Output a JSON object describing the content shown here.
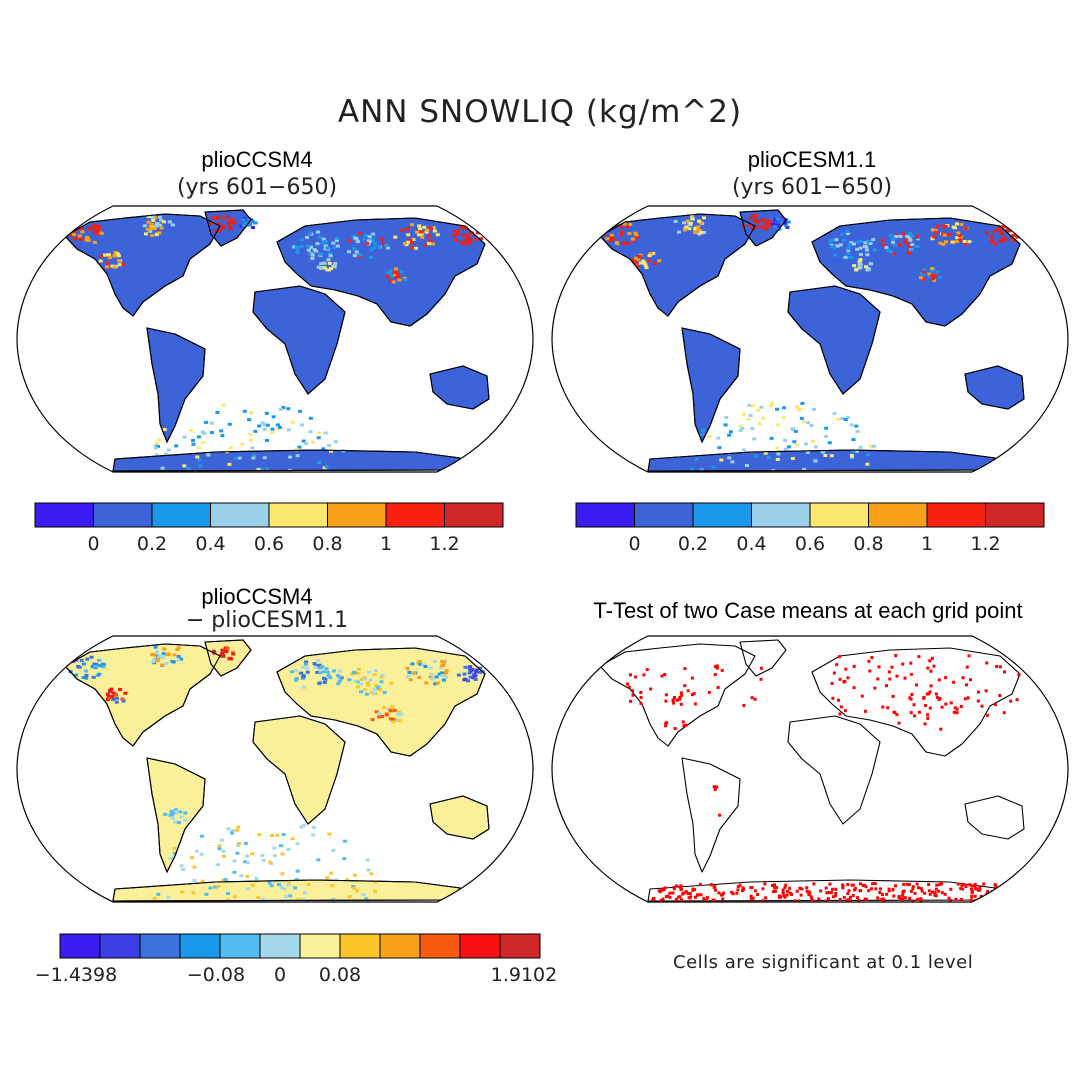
{
  "figure": {
    "title": "ANN SNOWLIQ (kg/m^2)"
  },
  "panels": [
    {
      "id": "a",
      "title": "plioCCSM4",
      "subtitle": "(yrs 601−650)",
      "style": "field"
    },
    {
      "id": "b",
      "title": "plioCESM1.1",
      "subtitle": "(yrs 601−650)",
      "style": "field"
    },
    {
      "id": "c",
      "title": "plioCCSM4",
      "subtitle": "− plioCESM1.1",
      "style": "diff"
    },
    {
      "id": "d",
      "title": "T-Test of two Case means at each grid point",
      "subtitle": "",
      "style": "ttest"
    }
  ],
  "colorbars": {
    "field": {
      "colors": [
        "#3a1cf0",
        "#3c63d8",
        "#1a98ea",
        "#9ad0ea",
        "#fbe870",
        "#f8a01a",
        "#fa2010",
        "#d02828"
      ],
      "tick_labels": [
        "0",
        "0.2",
        "0.4",
        "0.6",
        "0.8",
        "1",
        "1.2"
      ]
    },
    "diff": {
      "colors": [
        "#3a1cf0",
        "#3c3fe6",
        "#3c72dc",
        "#1a98ea",
        "#52bbf0",
        "#a6d8ec",
        "#fbf09a",
        "#fcc62a",
        "#f8a01a",
        "#f85a10",
        "#fa1010",
        "#d02828"
      ],
      "tick_labels": [
        "−1.4398",
        "−0.08",
        "0",
        "0.08",
        "1.9102"
      ]
    }
  },
  "ttest": {
    "note": "Cells are significant at 0.1 level",
    "significant_color": "#ff0000"
  },
  "land_colors": {
    "field_base": "#3c63d8",
    "diff_base": "#fbf09a"
  }
}
